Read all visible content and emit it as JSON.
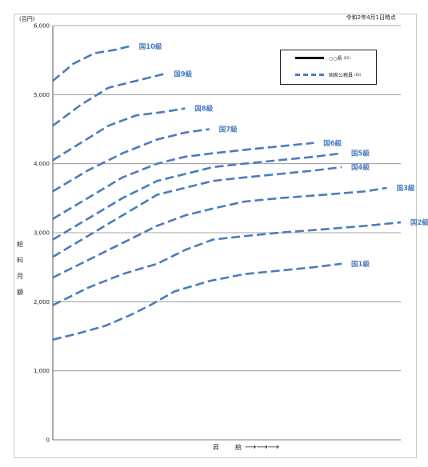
{
  "chart_data": {
    "type": "line",
    "unit_label": "(百円)",
    "as_of": "令和2年4月1日時点",
    "ylabel": "給料月額",
    "xlabel": "昇　給",
    "ylim": [
      0,
      6000
    ],
    "yticks": [
      "0",
      "1,000",
      "2,000",
      "3,000",
      "4,000",
      "5,000",
      "6,000"
    ],
    "ytick_values": [
      0,
      1000,
      2000,
      3000,
      4000,
      5000,
      6000
    ],
    "grid": true,
    "legend": {
      "placement": "top-right",
      "entries": [
        {
          "label": "○○県",
          "sub": "(R2)",
          "style": "solid",
          "color": "#111111"
        },
        {
          "label": "国家公務員",
          "sub": "(R2)",
          "style": "dashed",
          "color": "#4a7bbf"
        }
      ]
    },
    "x_range": [
      0,
      100
    ],
    "series_color": "#4a7bbf",
    "series": [
      {
        "name": "国1級",
        "x": [
          0,
          8,
          15,
          22,
          28,
          35,
          45,
          55,
          65,
          75,
          83
        ],
        "values": [
          1450,
          1550,
          1650,
          1800,
          1950,
          2150,
          2300,
          2400,
          2450,
          2500,
          2550
        ]
      },
      {
        "name": "国2級",
        "x": [
          0,
          10,
          20,
          30,
          38,
          46,
          55,
          65,
          78,
          90,
          100
        ],
        "values": [
          1950,
          2200,
          2400,
          2550,
          2750,
          2900,
          2950,
          3000,
          3050,
          3100,
          3150
        ]
      },
      {
        "name": "国3級",
        "x": [
          0,
          10,
          20,
          30,
          38,
          46,
          55,
          65,
          78,
          90,
          96
        ],
        "values": [
          2350,
          2600,
          2850,
          3100,
          3250,
          3350,
          3450,
          3500,
          3550,
          3600,
          3650
        ]
      },
      {
        "name": "国4級",
        "x": [
          0,
          10,
          20,
          30,
          38,
          46,
          55,
          65,
          75,
          83
        ],
        "values": [
          2650,
          2950,
          3250,
          3550,
          3650,
          3750,
          3800,
          3850,
          3900,
          3950
        ]
      },
      {
        "name": "国5級",
        "x": [
          0,
          10,
          20,
          30,
          38,
          46,
          55,
          65,
          75,
          83
        ],
        "values": [
          2900,
          3200,
          3500,
          3750,
          3850,
          3950,
          4000,
          4050,
          4100,
          4150
        ]
      },
      {
        "name": "国6級",
        "x": [
          0,
          10,
          20,
          30,
          38,
          46,
          55,
          65,
          75
        ],
        "values": [
          3200,
          3500,
          3800,
          4000,
          4100,
          4150,
          4200,
          4250,
          4300
        ]
      },
      {
        "name": "国7級",
        "x": [
          0,
          10,
          20,
          30,
          38,
          45
        ],
        "values": [
          3600,
          3900,
          4150,
          4350,
          4450,
          4500
        ]
      },
      {
        "name": "国8級",
        "x": [
          0,
          8,
          16,
          24,
          32,
          38
        ],
        "values": [
          4050,
          4300,
          4550,
          4700,
          4750,
          4800
        ]
      },
      {
        "name": "国9級",
        "x": [
          0,
          8,
          16,
          24,
          32
        ],
        "values": [
          4550,
          4850,
          5100,
          5200,
          5300
        ]
      },
      {
        "name": "国10級",
        "x": [
          0,
          6,
          12,
          18,
          22
        ],
        "values": [
          5200,
          5450,
          5600,
          5650,
          5700
        ]
      }
    ],
    "series_labels": [
      {
        "text": "国1級",
        "series": "国1級"
      },
      {
        "text": "国2級",
        "series": "国2級"
      },
      {
        "text": "国3級",
        "series": "国3級"
      },
      {
        "text": "国4級",
        "series": "国4級"
      },
      {
        "text": "国5級",
        "series": "国5級"
      },
      {
        "text": "国6級",
        "series": "国6級"
      },
      {
        "text": "国7級",
        "series": "国7級"
      },
      {
        "text": "国8級",
        "series": "国8級"
      },
      {
        "text": "国9級",
        "series": "国9級"
      },
      {
        "text": "国10級",
        "series": "国10級"
      }
    ]
  }
}
